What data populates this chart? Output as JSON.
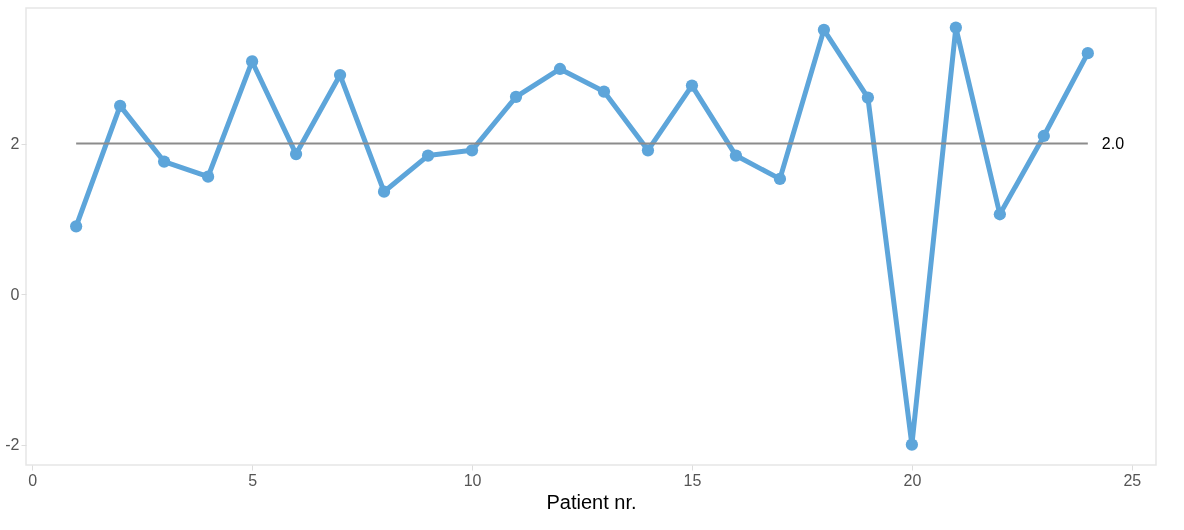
{
  "chart_data": {
    "type": "line",
    "xlabel": "Patient nr.",
    "x": [
      1,
      2,
      3,
      4,
      5,
      6,
      7,
      8,
      9,
      10,
      11,
      12,
      13,
      14,
      15,
      16,
      17,
      18,
      19,
      20,
      21,
      22,
      23,
      24
    ],
    "series": [
      {
        "color": "#5da5da",
        "values": [
          0.9,
          2.5,
          1.76,
          1.56,
          3.09,
          1.86,
          2.91,
          1.36,
          1.84,
          1.91,
          2.62,
          2.99,
          2.69,
          1.91,
          2.77,
          1.84,
          1.53,
          3.51,
          2.61,
          -2.0,
          3.54,
          1.06,
          2.1,
          3.2
        ]
      }
    ],
    "xlim": [
      -0.14,
      25.55
    ],
    "xticks": [
      0,
      5,
      10,
      15,
      20,
      25
    ],
    "ylim": [
      -2.27,
      3.8
    ],
    "yticks": [
      -2,
      0,
      2
    ],
    "ref_lines": [
      {
        "axis": "y",
        "value": 2,
        "label": "2.0",
        "color": "#8c8c8c"
      }
    ],
    "grid": false,
    "marker": "circle",
    "line_style": "solid"
  }
}
